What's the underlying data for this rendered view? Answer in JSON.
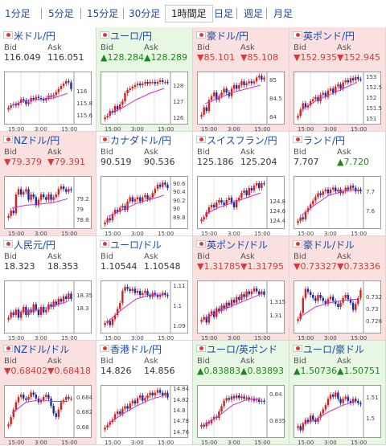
{
  "tabs": [
    {
      "label": "1分足",
      "active": false
    },
    {
      "label": "5分足",
      "active": false
    },
    {
      "label": "15分足",
      "active": false
    },
    {
      "label": "30分足",
      "active": false
    },
    {
      "label": "1時間足",
      "active": true
    },
    {
      "label": "日足",
      "active": false
    },
    {
      "label": "週足",
      "active": false
    },
    {
      "label": "月足",
      "active": false
    }
  ],
  "bid_label": "Bid",
  "ask_label": "Ask",
  "colors": {
    "up_bg": "#e8f7e4",
    "down_bg": "#fbe0e0",
    "up_text": "#198a19",
    "down_text": "#d43c3c",
    "link": "#1a4aa8",
    "candle_up": "#d62020",
    "candle_down": "#1a2aa0",
    "ma_line": "#cc33cc"
  },
  "pairs": [
    {
      "name": "米ドル/円",
      "flag": "us-flag-icon",
      "trend": "flat",
      "bid": "116.049",
      "ask": "116.051",
      "ylim": [
        115.5,
        116.3
      ],
      "yticks": [
        "116",
        "115.8",
        "115.6"
      ],
      "xticks": [
        "15:00",
        "3:00",
        "15:00"
      ],
      "candles": [
        115.74,
        115.78,
        115.8,
        115.78,
        115.82,
        115.88,
        115.86,
        115.8,
        115.84,
        115.9,
        115.88,
        115.92,
        115.9,
        115.88,
        115.86,
        115.9,
        115.94,
        115.92,
        115.95,
        116.0,
        116.05,
        116.1,
        116.14,
        116.18,
        116.16,
        116.05
      ],
      "ma": [
        115.78,
        115.86,
        115.88,
        115.9,
        115.98
      ]
    },
    {
      "name": "ユーロ/円",
      "flag": "eu-flag-icon",
      "trend": "up",
      "bid": "▲128.284",
      "ask": "▲128.289",
      "ylim": [
        125.8,
        128.8
      ],
      "yticks": [
        "128",
        "127",
        "126"
      ],
      "xticks": [
        "15:00",
        "3:00",
        "15:00"
      ],
      "candles": [
        126.1,
        126.2,
        126.5,
        126.4,
        126.8,
        126.6,
        126.9,
        127.1,
        127.6,
        127.8,
        127.9,
        128.0,
        128.1,
        128.2,
        128.1,
        128.2,
        128.3,
        128.2,
        128.3,
        128.3,
        128.2,
        128.3,
        128.4,
        128.3,
        128.3,
        128.28
      ],
      "ma": [
        126.3,
        126.7,
        127.2,
        127.6,
        127.9
      ]
    },
    {
      "name": "豪ドル/円",
      "flag": "au-flag-icon",
      "trend": "down",
      "bid": "▼85.101",
      "ask": "▼85.108",
      "ylim": [
        83.9,
        85.2
      ],
      "yticks": [
        "85",
        "84.5",
        "84"
      ],
      "xticks": [
        "15:00",
        "3:00",
        "15:00"
      ],
      "candles": [
        84.1,
        84.3,
        84.2,
        84.5,
        84.6,
        84.7,
        84.5,
        84.6,
        84.7,
        84.8,
        84.7,
        84.6,
        84.8,
        84.9,
        84.8,
        84.9,
        85.0,
        84.9,
        84.95,
        85.0,
        84.95,
        85.0,
        85.1,
        85.15,
        85.05,
        85.1
      ],
      "ma": [
        84.4,
        84.55,
        84.7,
        84.8,
        84.9
      ]
    },
    {
      "name": "英ポンド/円",
      "flag": "uk-flag-icon",
      "trend": "down",
      "bid": "▼152.935",
      "ask": "▼152.945",
      "ylim": [
        150.9,
        153.2
      ],
      "yticks": [
        "153",
        "152.5",
        "152",
        "151.5",
        "151"
      ],
      "xticks": [
        "15:00",
        "3:00",
        "15:00"
      ],
      "candles": [
        151.2,
        151.5,
        151.8,
        151.6,
        151.7,
        151.9,
        152.0,
        152.1,
        151.9,
        152.2,
        152.3,
        152.1,
        152.4,
        152.5,
        152.3,
        152.6,
        152.7,
        152.5,
        152.8,
        152.9,
        152.8,
        153.0,
        152.9,
        153.05,
        152.95,
        152.94
      ],
      "ma": [
        151.5,
        151.9,
        152.2,
        152.5,
        152.8
      ]
    },
    {
      "name": "NZドル/円",
      "flag": "nz-flag-icon",
      "trend": "down",
      "bid": "▼79.379",
      "ask": "▼79.391",
      "ylim": [
        78.7,
        79.6
      ],
      "yticks": [
        "79.2",
        "79",
        "78.8"
      ],
      "xticks": [
        "15:00",
        "3:00",
        "15:00"
      ],
      "candles": [
        78.9,
        79.0,
        78.95,
        79.3,
        79.4,
        79.3,
        79.35,
        79.4,
        79.2,
        79.3,
        79.25,
        79.1,
        79.2,
        79.3,
        79.25,
        79.2,
        79.3,
        79.2,
        79.25,
        79.3,
        79.4,
        79.45,
        79.4,
        79.35,
        79.4,
        79.38
      ],
      "ma": [
        79.05,
        79.1,
        79.12,
        79.15,
        79.22
      ]
    },
    {
      "name": "カナダドル/円",
      "flag": "ca-flag-icon",
      "trend": "flat",
      "bid": "90.519",
      "ask": "90.536",
      "ylim": [
        89.6,
        90.75
      ],
      "yticks": [
        "90.6",
        "90.4",
        "90.2",
        "90",
        "89.8"
      ],
      "xticks": [
        "15:00",
        "3:00",
        "15:00"
      ],
      "candles": [
        89.7,
        89.8,
        89.75,
        89.9,
        90.0,
        89.95,
        90.05,
        90.1,
        90.0,
        90.2,
        90.3,
        90.2,
        90.25,
        90.3,
        90.2,
        90.3,
        90.35,
        90.25,
        90.3,
        90.4,
        90.5,
        90.6,
        90.55,
        90.65,
        90.6,
        90.52
      ],
      "ma": [
        89.85,
        90.0,
        90.15,
        90.25,
        90.35
      ]
    },
    {
      "name": "スイスフラン/円",
      "flag": "ch-flag-icon",
      "trend": "flat",
      "bid": "125.186",
      "ask": "125.204",
      "ylim": [
        124.3,
        125.3
      ],
      "yticks": [
        "124.8",
        "124.6",
        "124.4"
      ],
      "xticks": [
        "15:00",
        "3:00",
        "15:00"
      ],
      "candles": [
        124.45,
        124.5,
        124.6,
        124.7,
        124.75,
        124.7,
        124.8,
        124.85,
        124.8,
        124.75,
        124.85,
        124.9,
        124.8,
        124.7,
        124.85,
        124.9,
        125.0,
        125.05,
        124.95,
        125.1,
        125.05,
        125.15,
        125.2,
        125.1,
        125.2,
        125.19
      ],
      "ma": [
        124.55,
        124.7,
        124.8,
        124.9,
        125.0
      ]
    },
    {
      "name": "ランド/円",
      "flag": "za-flag-icon",
      "trend": "flat",
      "bid": "7.707",
      "ask": "▲7.720",
      "ylim": [
        7.52,
        7.78
      ],
      "yticks": [
        "7.7",
        "7.6"
      ],
      "xticks": [
        "15:00",
        "3:00",
        "15:00"
      ],
      "candles": [
        7.55,
        7.57,
        7.56,
        7.6,
        7.62,
        7.64,
        7.66,
        7.68,
        7.7,
        7.69,
        7.71,
        7.72,
        7.7,
        7.72,
        7.73,
        7.71,
        7.72,
        7.7,
        7.71,
        7.73,
        7.72,
        7.74,
        7.73,
        7.71,
        7.72,
        7.71
      ],
      "ma": [
        7.58,
        7.64,
        7.69,
        7.71,
        7.72
      ]
    },
    {
      "name": "人民元/円",
      "flag": "cn-flag-icon",
      "trend": "flat",
      "bid": "18.323",
      "ask": "18.353",
      "ylim": [
        18.22,
        18.4
      ],
      "yticks": [
        "18.35",
        "18.3"
      ],
      "xticks": [
        "15:00",
        "3:00",
        "15:00"
      ],
      "candles": [
        18.27,
        18.29,
        18.28,
        18.3,
        18.27,
        18.29,
        18.31,
        18.28,
        18.3,
        18.29,
        18.32,
        18.3,
        18.28,
        18.31,
        18.29,
        18.3,
        18.32,
        18.31,
        18.33,
        18.32,
        18.34,
        18.33,
        18.35,
        18.34,
        18.36,
        18.34
      ],
      "ma": [
        18.285,
        18.295,
        18.3,
        18.315,
        18.33
      ]
    },
    {
      "name": "ユーロ/ドル",
      "flag": "eu-flag-icon",
      "trend": "flat",
      "bid": "1.10544",
      "ask": "1.10548",
      "ylim": [
        1.088,
        1.112
      ],
      "yticks": [
        "1.11",
        "1.1",
        "1.09"
      ],
      "xticks": [
        "15:00",
        "3:00",
        "15:00"
      ],
      "candles": [
        1.092,
        1.093,
        1.091,
        1.094,
        1.096,
        1.099,
        1.102,
        1.108,
        1.11,
        1.109,
        1.108,
        1.109,
        1.107,
        1.108,
        1.106,
        1.107,
        1.108,
        1.106,
        1.105,
        1.107,
        1.106,
        1.105,
        1.106,
        1.107,
        1.106,
        1.1054
      ],
      "ma": [
        1.093,
        1.099,
        1.104,
        1.106,
        1.106
      ]
    },
    {
      "name": "英ポンド/ドル",
      "flag": "uk-flag-icon",
      "trend": "down",
      "bid": "▼1.31785",
      "ask": "▼1.31795",
      "ylim": [
        1.305,
        1.322
      ],
      "yticks": [
        "1.315",
        "1.31"
      ],
      "xticks": [
        "15:00",
        "3:00",
        "15:00"
      ],
      "candles": [
        1.309,
        1.31,
        1.308,
        1.311,
        1.312,
        1.31,
        1.313,
        1.312,
        1.314,
        1.313,
        1.315,
        1.314,
        1.316,
        1.315,
        1.317,
        1.316,
        1.318,
        1.317,
        1.319,
        1.318,
        1.319,
        1.32,
        1.319,
        1.318,
        1.319,
        1.3178
      ],
      "ma": [
        1.3095,
        1.312,
        1.314,
        1.316,
        1.318
      ]
    },
    {
      "name": "豪ドル/ドル",
      "flag": "au-flag-icon",
      "trend": "down",
      "bid": "▼0.73327",
      "ask": "▼0.73336",
      "ylim": [
        0.7265,
        0.7345
      ],
      "yticks": [
        "0.732",
        "0.73",
        "0.728"
      ],
      "xticks": [
        "15:00",
        "3:00",
        "15:00"
      ],
      "candles": [
        0.7285,
        0.7295,
        0.732,
        0.7335,
        0.733,
        0.7325,
        0.732,
        0.7315,
        0.7325,
        0.732,
        0.7315,
        0.731,
        0.7318,
        0.7322,
        0.7315,
        0.731,
        0.7305,
        0.7312,
        0.732,
        0.7325,
        0.7318,
        0.7312,
        0.73,
        0.731,
        0.732,
        0.7333
      ],
      "ma": [
        0.729,
        0.7305,
        0.7312,
        0.7316,
        0.7318
      ]
    },
    {
      "name": "NZドル/ドル",
      "flag": "nz-flag-icon",
      "trend": "down",
      "bid": "▼0.68402",
      "ask": "▼0.68418",
      "ylim": [
        0.679,
        0.6855
      ],
      "yticks": [
        "0.684",
        "0.682",
        "0.68"
      ],
      "xticks": [
        "15:00",
        "3:00",
        "15:00"
      ],
      "candles": [
        0.6805,
        0.6815,
        0.6825,
        0.6835,
        0.6842,
        0.6845,
        0.684,
        0.6838,
        0.6842,
        0.6848,
        0.6845,
        0.684,
        0.6835,
        0.6838,
        0.6842,
        0.6845,
        0.684,
        0.683,
        0.682,
        0.6815,
        0.6825,
        0.6835,
        0.6838,
        0.6842,
        0.684,
        0.684
      ],
      "ma": [
        0.682,
        0.6835,
        0.6838,
        0.6836,
        0.6836
      ]
    },
    {
      "name": "香港ドル/円",
      "flag": "hk-flag-icon",
      "trend": "flat",
      "bid": "14.826",
      "ask": "14.856",
      "ylim": [
        14.755,
        14.845
      ],
      "yticks": [
        "14.84",
        "14.82",
        "14.8",
        "14.78",
        "14.76"
      ],
      "xticks": [
        "15:00",
        "3:00",
        "15:00"
      ],
      "candles": [
        14.77,
        14.775,
        14.78,
        14.785,
        14.795,
        14.8,
        14.795,
        14.805,
        14.81,
        14.805,
        14.815,
        14.82,
        14.815,
        14.825,
        14.83,
        14.82,
        14.825,
        14.83,
        14.835,
        14.83,
        14.835,
        14.84,
        14.835,
        14.83,
        14.835,
        14.826
      ],
      "ma": [
        14.778,
        14.795,
        14.81,
        14.822,
        14.83
      ]
    },
    {
      "name": "ユーロ/英ポンド",
      "flag": "eu-flag-icon",
      "trend": "up",
      "bid": "▲0.83883",
      "ask": "▲0.83893",
      "ylim": [
        0.8325,
        0.8415
      ],
      "yticks": [
        "0.84",
        "0.835"
      ],
      "xticks": [
        "15:00",
        "3:00",
        "15:00"
      ],
      "candles": [
        0.8345,
        0.8342,
        0.835,
        0.8348,
        0.8355,
        0.836,
        0.8358,
        0.837,
        0.838,
        0.839,
        0.8395,
        0.8392,
        0.8398,
        0.8395,
        0.84,
        0.8395,
        0.8398,
        0.8394,
        0.8396,
        0.8392,
        0.8394,
        0.839,
        0.8392,
        0.8388,
        0.839,
        0.8388
      ],
      "ma": [
        0.8346,
        0.8362,
        0.8382,
        0.8392,
        0.8394
      ]
    },
    {
      "name": "ユーロ/豪ドル",
      "flag": "eu-flag-icon",
      "trend": "up",
      "bid": "▲1.50736",
      "ask": "▲1.50751",
      "ylim": [
        1.4925,
        1.5155
      ],
      "yticks": [
        "1.51",
        "1.5"
      ],
      "xticks": [
        "15:00",
        "3:00",
        "15:00"
      ],
      "candles": [
        1.497,
        1.495,
        1.498,
        1.5,
        1.499,
        1.502,
        1.5,
        1.499,
        1.501,
        1.503,
        1.505,
        1.507,
        1.51,
        1.512,
        1.511,
        1.513,
        1.51,
        1.508,
        1.51,
        1.511,
        1.509,
        1.508,
        1.51,
        1.509,
        1.508,
        1.5074
      ],
      "ma": [
        1.498,
        1.5,
        1.504,
        1.507,
        1.509
      ]
    }
  ]
}
